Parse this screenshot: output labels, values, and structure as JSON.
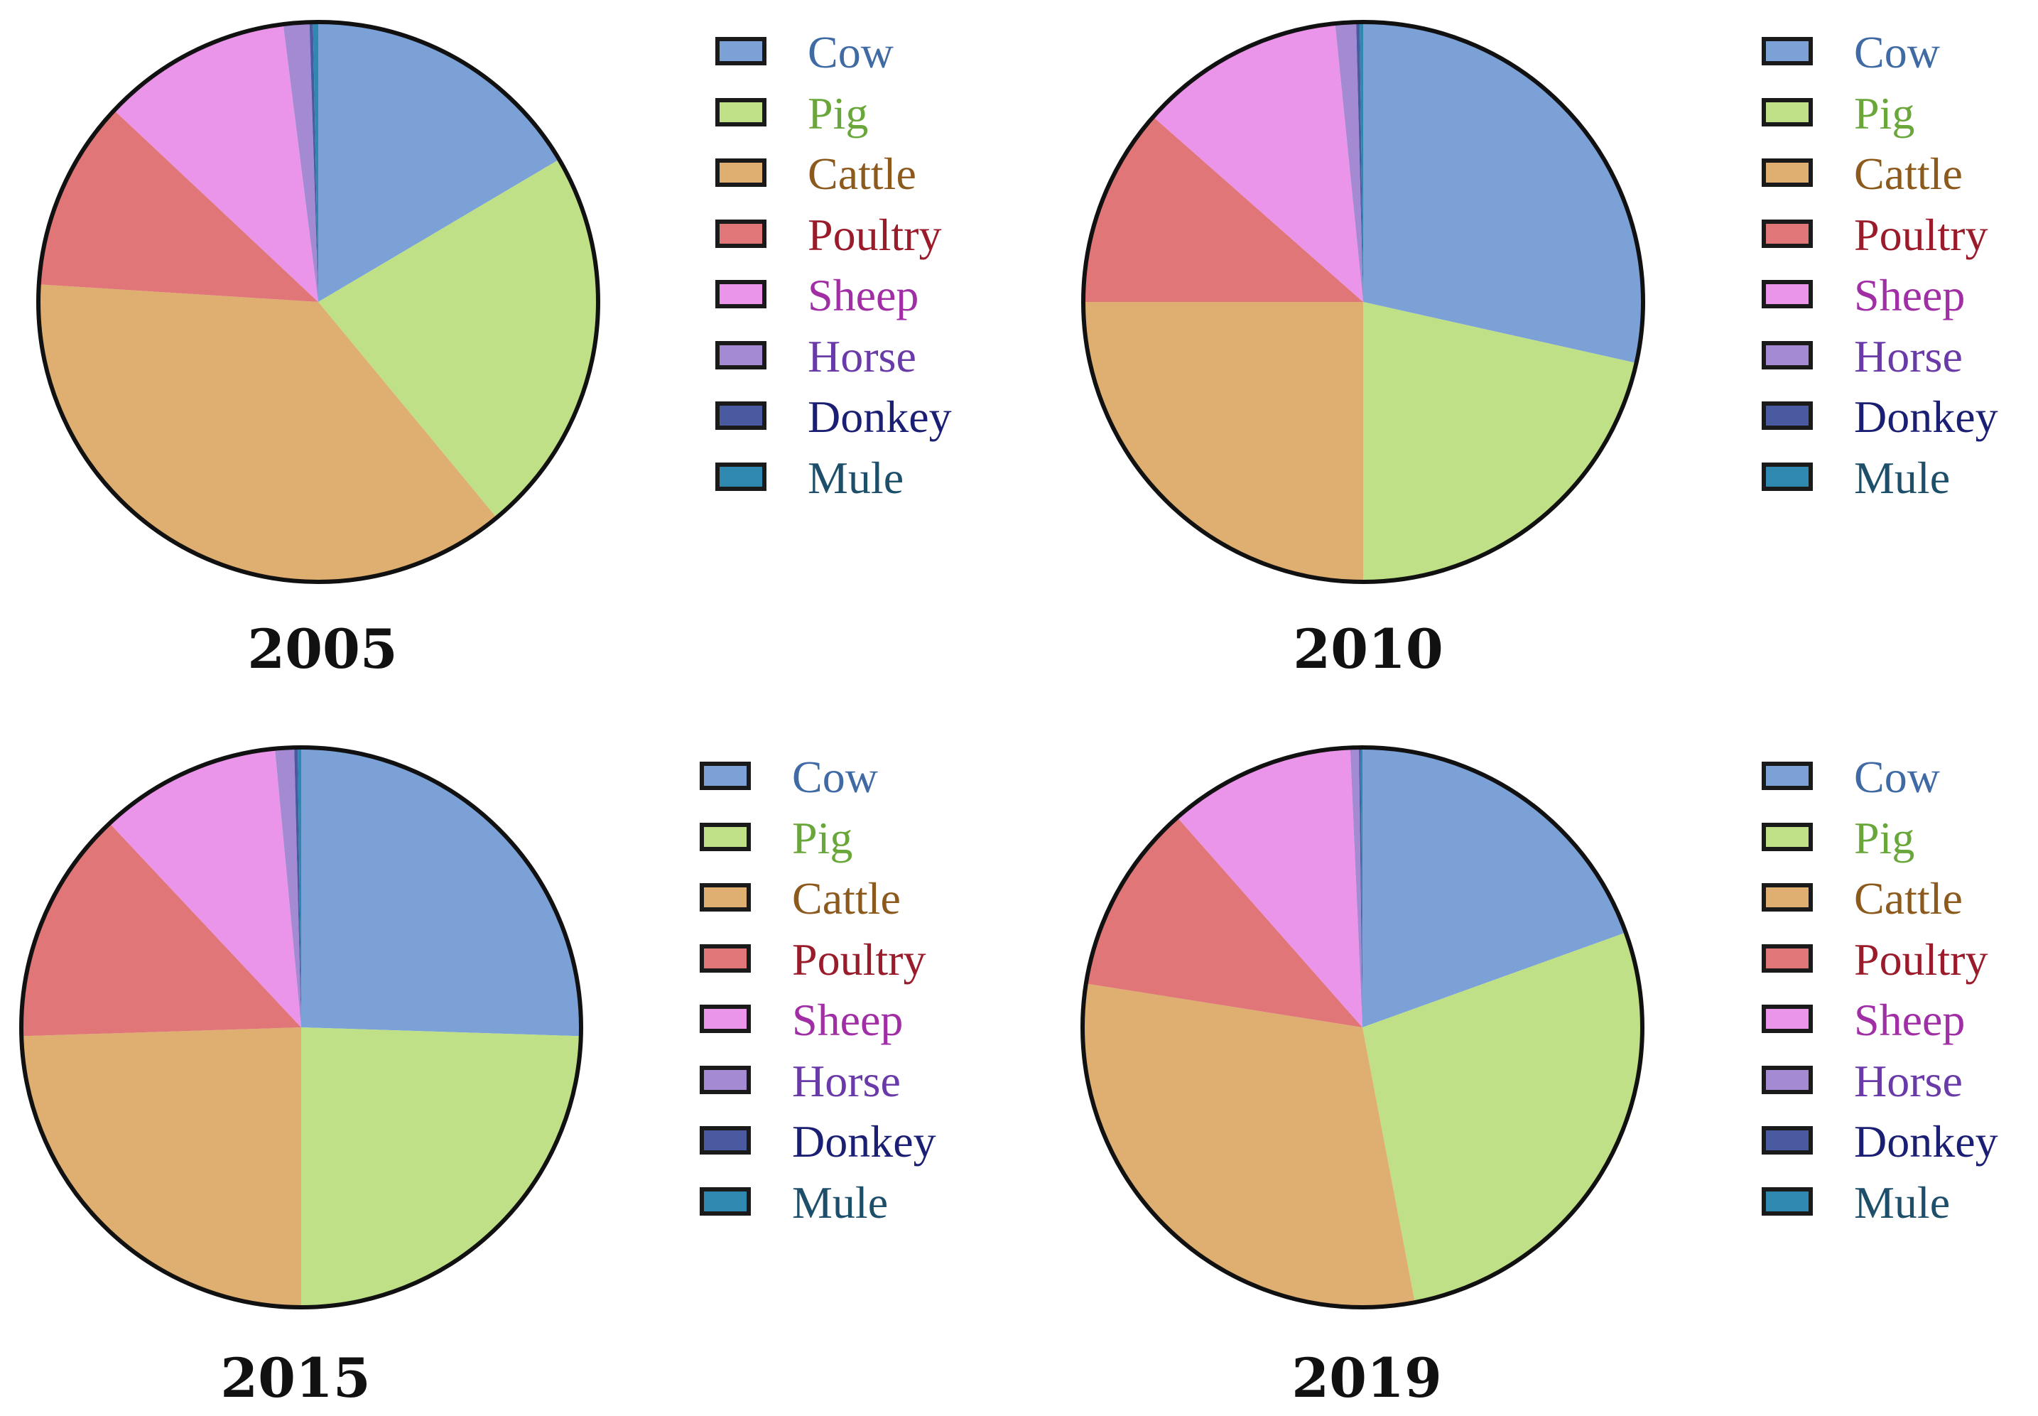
{
  "chart_data": [
    {
      "type": "pie",
      "title": "2005",
      "categories": [
        "Cow",
        "Pig",
        "Cattle",
        "Poultry",
        "Sheep",
        "Horse",
        "Donkey",
        "Mule"
      ],
      "values": [
        16.5,
        22.5,
        37.0,
        11.0,
        11.0,
        1.5,
        0.2,
        0.3
      ],
      "legend_position": "right"
    },
    {
      "type": "pie",
      "title": "2010",
      "categories": [
        "Cow",
        "Pig",
        "Cattle",
        "Poultry",
        "Sheep",
        "Horse",
        "Donkey",
        "Mule"
      ],
      "values": [
        28.5,
        21.5,
        25.0,
        11.5,
        11.9,
        1.2,
        0.2,
        0.2
      ],
      "legend_position": "right"
    },
    {
      "type": "pie",
      "title": "2015",
      "categories": [
        "Cow",
        "Pig",
        "Cattle",
        "Poultry",
        "Sheep",
        "Horse",
        "Donkey",
        "Mule"
      ],
      "values": [
        25.5,
        24.5,
        24.5,
        13.5,
        10.5,
        1.1,
        0.2,
        0.2
      ],
      "legend_position": "right"
    },
    {
      "type": "pie",
      "title": "2019",
      "categories": [
        "Cow",
        "Pig",
        "Cattle",
        "Poultry",
        "Sheep",
        "Horse",
        "Donkey",
        "Mule"
      ],
      "values": [
        19.5,
        27.5,
        30.5,
        11.0,
        10.8,
        0.5,
        0.1,
        0.1
      ],
      "legend_position": "right"
    }
  ],
  "series_colors": {
    "Cow": "#7ba1d6",
    "Pig": "#bfe087",
    "Cattle": "#deaf70",
    "Poultry": "#e07677",
    "Sheep": "#ea95ea",
    "Horse": "#a48ad2",
    "Donkey": "#4a5aa0",
    "Mule": "#2e88b0"
  },
  "label_colors": {
    "Cow": "#3f6aa4",
    "Pig": "#6aa73a",
    "Cattle": "#8c5a1d",
    "Poultry": "#9a1b2a",
    "Sheep": "#a02ea4",
    "Horse": "#6a3aa8",
    "Donkey": "#1b1f73",
    "Mule": "#1e4f6a"
  }
}
